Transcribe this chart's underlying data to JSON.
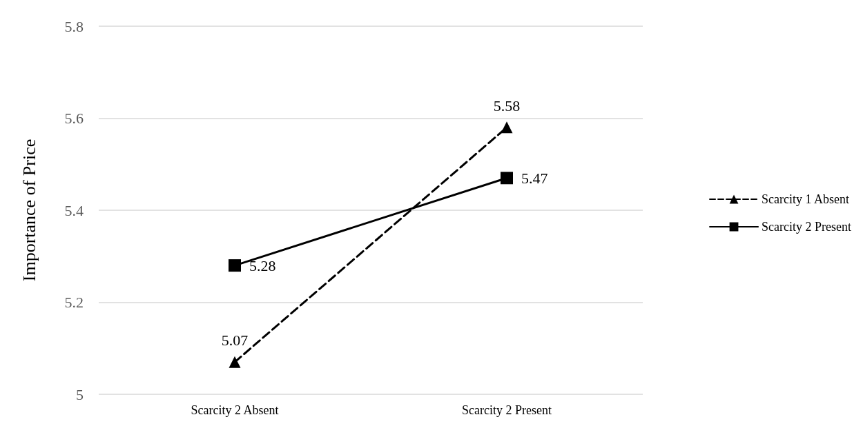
{
  "chart_data": {
    "type": "line",
    "ylabel": "Importance of Price",
    "categories": [
      "Scarcity 2 Absent",
      "Scarcity 2 Present"
    ],
    "series": [
      {
        "name": "Scarcity 1 Absent",
        "color": "#000000",
        "values": [
          5.07,
          5.58
        ],
        "marker": "triangle",
        "line_style": "dashed"
      },
      {
        "name": "Scarcity 2 Present",
        "color": "#000000",
        "values": [
          5.28,
          5.47
        ],
        "marker": "square",
        "line_style": "solid"
      }
    ],
    "ylim": [
      5,
      5.8
    ],
    "yticks": [
      5,
      5.2,
      5.4,
      5.6,
      5.8
    ],
    "grid": "y",
    "legend": "right",
    "data_labels": true
  }
}
